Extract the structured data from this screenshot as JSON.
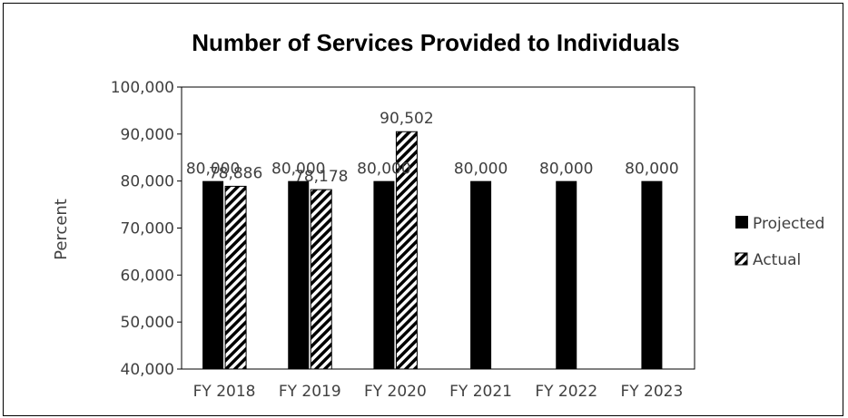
{
  "chart_data": {
    "type": "bar",
    "title": "Number of Services Provided to Individuals",
    "xlabel": "",
    "ylabel": "Percent",
    "categories": [
      "FY 2018",
      "FY 2019",
      "FY 2020",
      "FY 2021",
      "FY 2022",
      "FY 2023"
    ],
    "series": [
      {
        "name": "Projected",
        "values": [
          80000,
          80000,
          80000,
          80000,
          80000,
          80000
        ],
        "color": "#000000",
        "pattern": "solid"
      },
      {
        "name": "Actual",
        "values": [
          78886,
          78178,
          90502,
          null,
          null,
          null
        ],
        "color": "#000000",
        "pattern": "diagonal-hatch"
      }
    ],
    "data_labels": {
      "Projected": [
        "80,000",
        "80,000",
        "80,000",
        "80,000",
        "80,000",
        "80,000"
      ],
      "Actual": [
        "78,886",
        "78,178",
        "90,502",
        "",
        "",
        ""
      ]
    },
    "ylim": [
      40000,
      100000
    ],
    "ytick_step": 10000,
    "ytick_labels": [
      "40,000",
      "50,000",
      "60,000",
      "70,000",
      "80,000",
      "90,000",
      "100,000"
    ],
    "grid": false,
    "legend": "right"
  }
}
